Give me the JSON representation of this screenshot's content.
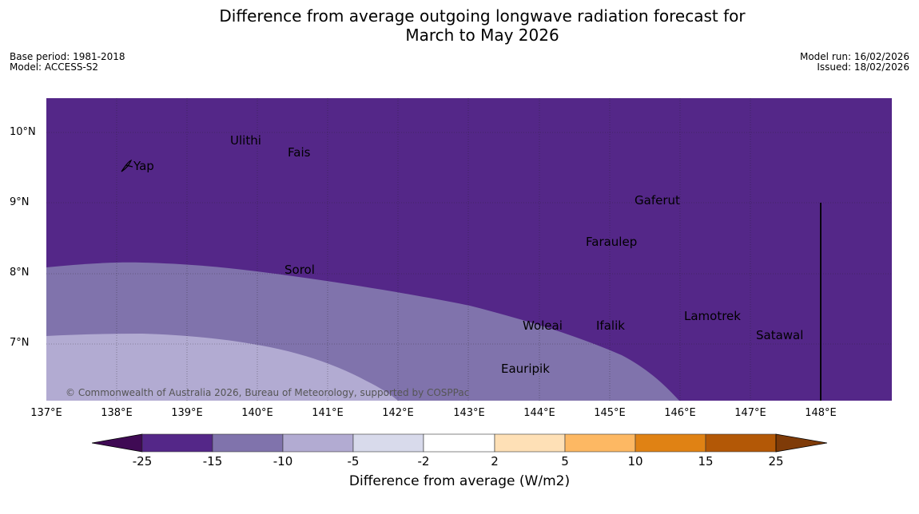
{
  "title_line1": "Difference from average outgoing longwave radiation forecast for",
  "title_line2": "March to May 2026",
  "base_period": "Base period: 1981-2018",
  "model": "Model: ACCESS-S2",
  "model_run": "Model run: 16/02/2026",
  "issued": "Issued: 18/02/2026",
  "copyright": "© Commonwealth of Australia 2026, Bureau of Meteorology, supported by COSPPac",
  "lat_labels": [
    "10°N",
    "9°N",
    "8°N",
    "7°N"
  ],
  "lon_labels": [
    "137°E",
    "138°E",
    "139°E",
    "140°E",
    "141°E",
    "142°E",
    "143°E",
    "144°E",
    "145°E",
    "146°E",
    "147°E",
    "148°E"
  ],
  "places": [
    "Ulithi",
    "Fais",
    "Yap",
    "Gaferut",
    "Faraulep",
    "Sorol",
    "Woleai",
    "Ifalik",
    "Lamotrek",
    "Satawal",
    "Eauripik"
  ],
  "colorbar": {
    "ticks": [
      "-25",
      "-15",
      "-10",
      "-5",
      "-2",
      "2",
      "5",
      "10",
      "15",
      "25"
    ],
    "colors": [
      "#3f0a54",
      "#542788",
      "#8073ac",
      "#b2abd2",
      "#d8daeb",
      "#ffffff",
      "#fee0b6",
      "#fdb863",
      "#e08214",
      "#b35806",
      "#7f3b08"
    ],
    "label": "Difference from average (W/m2)"
  }
}
